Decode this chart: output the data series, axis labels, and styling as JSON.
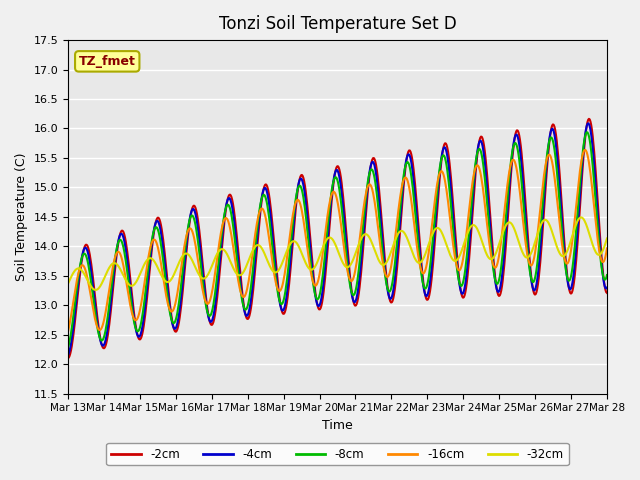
{
  "title": "Tonzi Soil Temperature Set D",
  "xlabel": "Time",
  "ylabel": "Soil Temperature (C)",
  "ylim": [
    11.5,
    17.5
  ],
  "yticks": [
    11.5,
    12.0,
    12.5,
    13.0,
    13.5,
    14.0,
    14.5,
    15.0,
    15.5,
    16.0,
    16.5,
    17.0,
    17.5
  ],
  "xtick_labels": [
    "Mar 13",
    "Mar 14",
    "Mar 15",
    "Mar 16",
    "Mar 17",
    "Mar 18",
    "Mar 19",
    "Mar 20",
    "Mar 21",
    "Mar 22",
    "Mar 23",
    "Mar 24",
    "Mar 25",
    "Mar 26",
    "Mar 27",
    "Mar 28"
  ],
  "n_days": 15,
  "legend_labels": [
    "-2cm",
    "-4cm",
    "-8cm",
    "-16cm",
    "-32cm"
  ],
  "line_colors": [
    "#cc0000",
    "#0000cc",
    "#00bb00",
    "#ff8800",
    "#dddd00"
  ],
  "line_widths": [
    1.5,
    1.5,
    1.5,
    1.5,
    1.5
  ],
  "background_color": "#e8e8e8",
  "grid_color": "#ffffff",
  "annotation_text": "TZ_fmet",
  "annotation_color": "#880000",
  "annotation_bg": "#ffff99",
  "annotation_edge": "#aaaa00"
}
